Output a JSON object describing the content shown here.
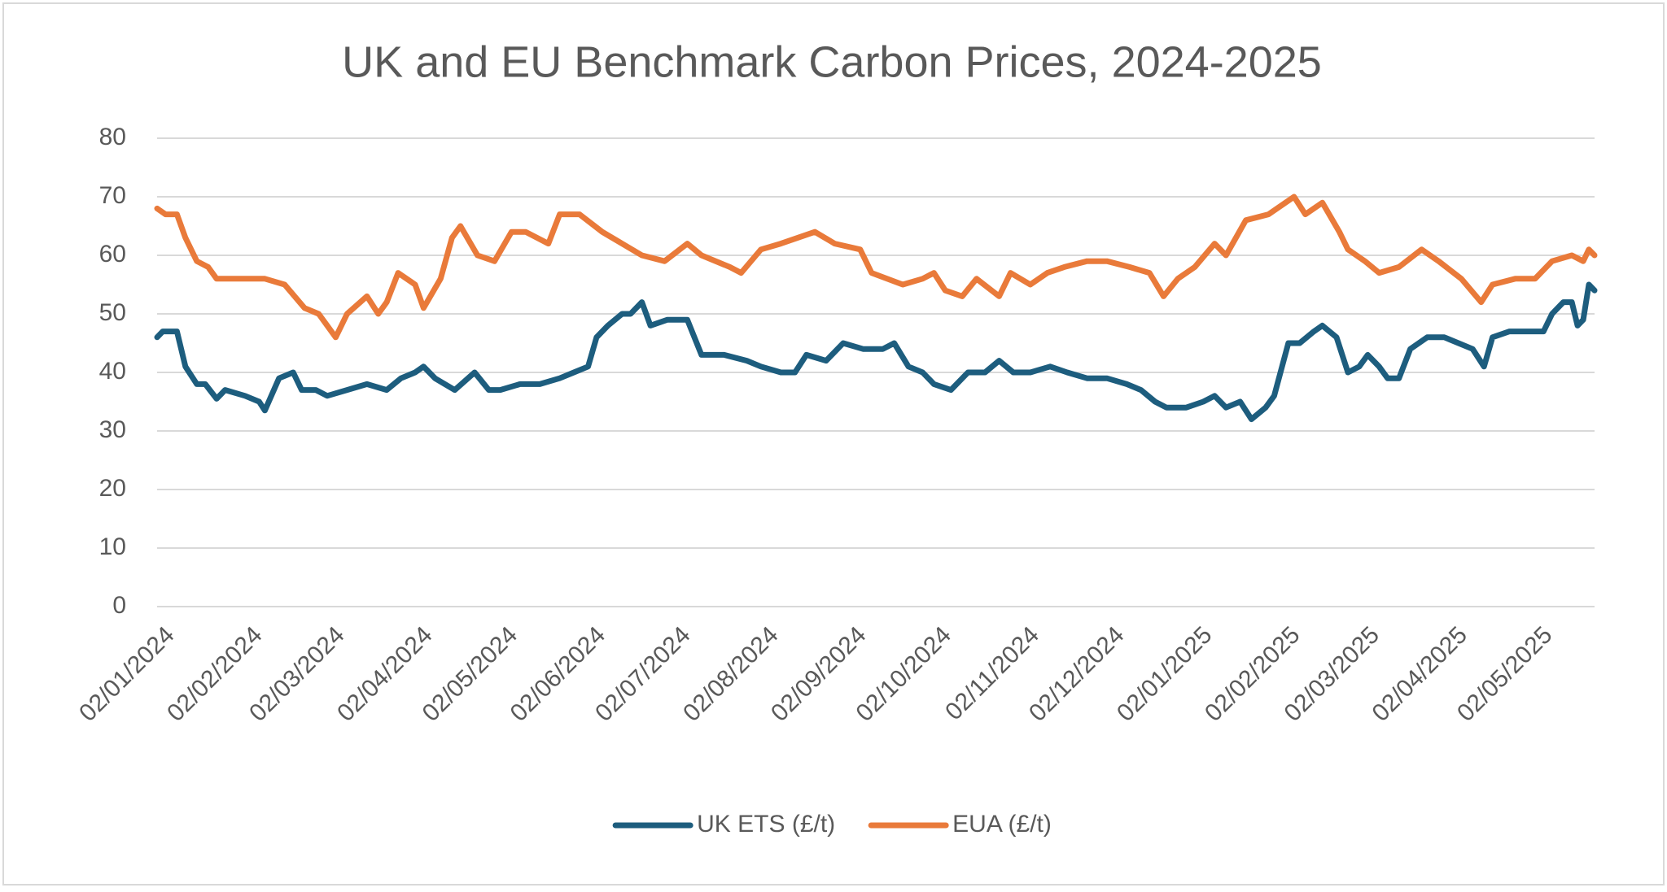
{
  "chart_data": {
    "type": "line",
    "title": "UK and EU Benchmark Carbon Prices, 2024-2025",
    "ylim": [
      0,
      80
    ],
    "yticks": [
      0,
      10,
      20,
      30,
      40,
      50,
      60,
      70,
      80
    ],
    "xlim": [
      "02/01/2024",
      "23/05/2025"
    ],
    "xticks": [
      "02/01/2024",
      "02/02/2024",
      "02/03/2024",
      "02/04/2024",
      "02/05/2024",
      "02/06/2024",
      "02/07/2024",
      "02/08/2024",
      "02/09/2024",
      "02/10/2024",
      "02/11/2024",
      "02/12/2024",
      "02/01/2025",
      "02/02/2025",
      "02/03/2025",
      "02/04/2025",
      "02/05/2025"
    ],
    "grid": true,
    "legend": "bottom",
    "series": [
      {
        "name": "UK ETS (£/t)",
        "color": "#1d5d7e",
        "x": [
          "02/01/2024",
          "04/01/2024",
          "09/01/2024",
          "12/01/2024",
          "16/01/2024",
          "19/01/2024",
          "23/01/2024",
          "26/01/2024",
          "02/02/2024",
          "07/02/2024",
          "09/02/2024",
          "14/02/2024",
          "19/02/2024",
          "22/02/2024",
          "27/02/2024",
          "02/03/2024",
          "09/03/2024",
          "16/03/2024",
          "23/03/2024",
          "28/03/2024",
          "02/04/2024",
          "05/04/2024",
          "09/04/2024",
          "16/04/2024",
          "23/04/2024",
          "28/04/2024",
          "02/05/2024",
          "09/05/2024",
          "16/05/2024",
          "23/05/2024",
          "28/05/2024",
          "02/06/2024",
          "05/06/2024",
          "09/06/2024",
          "14/06/2024",
          "17/06/2024",
          "21/06/2024",
          "24/06/2024",
          "30/06/2024",
          "07/07/2024",
          "12/07/2024",
          "20/07/2024",
          "28/07/2024",
          "02/08/2024",
          "09/08/2024",
          "14/08/2024",
          "18/08/2024",
          "25/08/2024",
          "31/08/2024",
          "07/09/2024",
          "14/09/2024",
          "18/09/2024",
          "23/09/2024",
          "28/09/2024",
          "02/10/2024",
          "08/10/2024",
          "14/10/2024",
          "20/10/2024",
          "25/10/2024",
          "30/10/2024",
          "05/11/2024",
          "12/11/2024",
          "18/11/2024",
          "25/11/2024",
          "02/12/2024",
          "09/12/2024",
          "14/12/2024",
          "19/12/2024",
          "23/12/2024",
          "30/12/2024",
          "05/01/2025",
          "09/01/2025",
          "13/01/2025",
          "18/01/2025",
          "22/01/2025",
          "27/01/2025",
          "30/01/2025",
          "04/02/2025",
          "08/02/2025",
          "13/02/2025",
          "16/02/2025",
          "21/02/2025",
          "25/02/2025",
          "01/03/2025",
          "04/03/2025",
          "08/03/2025",
          "11/03/2025",
          "15/03/2025",
          "19/03/2025",
          "25/03/2025",
          "31/03/2025",
          "05/04/2025",
          "10/04/2025",
          "14/04/2025",
          "17/04/2025",
          "23/04/2025",
          "29/04/2025",
          "05/05/2025",
          "08/05/2025",
          "12/05/2025",
          "15/05/2025",
          "17/05/2025",
          "19/05/2025",
          "21/05/2025",
          "23/05/2025"
        ],
        "values": [
          46,
          47,
          47,
          41,
          38,
          38,
          35.5,
          37,
          36,
          35,
          33.5,
          39,
          40,
          37,
          37,
          36,
          37,
          38,
          37,
          39,
          40,
          41,
          39,
          37,
          40,
          37,
          37,
          38,
          38,
          39,
          40,
          41,
          46,
          48,
          50,
          50,
          52,
          48,
          49,
          49,
          43,
          43,
          42,
          41,
          40,
          40,
          43,
          42,
          45,
          44,
          44,
          45,
          41,
          40,
          38,
          37,
          40,
          40,
          42,
          40,
          40,
          41,
          40,
          39,
          39,
          38,
          37,
          35,
          34,
          34,
          35,
          36,
          34,
          35,
          32,
          34,
          36,
          45,
          45,
          47,
          48,
          46,
          40,
          41,
          43,
          41,
          39,
          39,
          44,
          46,
          46,
          45,
          44,
          41,
          46,
          47,
          47,
          47,
          50,
          52,
          52,
          48,
          49,
          55,
          54
        ]
      },
      {
        "name": "EUA (£/t)",
        "color": "#e97a3a",
        "x": [
          "02/01/2024",
          "05/01/2024",
          "09/01/2024",
          "12/01/2024",
          "16/01/2024",
          "20/01/2024",
          "23/01/2024",
          "28/01/2024",
          "02/02/2024",
          "09/02/2024",
          "16/02/2024",
          "23/02/2024",
          "28/02/2024",
          "02/03/2024",
          "05/03/2024",
          "09/03/2024",
          "16/03/2024",
          "20/03/2024",
          "23/03/2024",
          "27/03/2024",
          "02/04/2024",
          "05/04/2024",
          "11/04/2024",
          "15/04/2024",
          "18/04/2024",
          "24/04/2024",
          "30/04/2024",
          "06/05/2024",
          "11/05/2024",
          "19/05/2024",
          "23/05/2024",
          "30/05/2024",
          "07/06/2024",
          "14/06/2024",
          "21/06/2024",
          "29/06/2024",
          "07/07/2024",
          "12/07/2024",
          "22/07/2024",
          "26/07/2024",
          "02/08/2024",
          "09/08/2024",
          "21/08/2024",
          "28/08/2024",
          "06/09/2024",
          "10/09/2024",
          "21/09/2024",
          "28/09/2024",
          "02/10/2024",
          "06/10/2024",
          "12/10/2024",
          "17/10/2024",
          "25/10/2024",
          "29/10/2024",
          "05/11/2024",
          "11/11/2024",
          "17/11/2024",
          "25/11/2024",
          "02/12/2024",
          "10/12/2024",
          "17/12/2024",
          "22/12/2024",
          "27/12/2024",
          "02/01/2025",
          "09/01/2025",
          "13/01/2025",
          "20/01/2025",
          "28/01/2025",
          "06/02/2025",
          "10/02/2025",
          "16/02/2025",
          "22/02/2025",
          "25/02/2025",
          "03/03/2025",
          "08/03/2025",
          "15/03/2025",
          "23/03/2025",
          "29/03/2025",
          "06/04/2025",
          "13/04/2025",
          "17/04/2025",
          "25/04/2025",
          "02/05/2025",
          "08/05/2025",
          "15/05/2025",
          "19/05/2025",
          "21/05/2025",
          "23/05/2025"
        ],
        "values": [
          68,
          67,
          67,
          63,
          59,
          58,
          56,
          56,
          56,
          56,
          55,
          51,
          50,
          48,
          46,
          50,
          53,
          50,
          52,
          57,
          55,
          51,
          56,
          63,
          65,
          60,
          59,
          64,
          64,
          62,
          67,
          67,
          64,
          62,
          60,
          59,
          62,
          60,
          58,
          57,
          61,
          62,
          64,
          62,
          61,
          57,
          55,
          56,
          57,
          54,
          53,
          56,
          53,
          57,
          55,
          57,
          58,
          59,
          59,
          58,
          57,
          53,
          56,
          58,
          62,
          60,
          66,
          67,
          70,
          67,
          69,
          64,
          61,
          59,
          57,
          58,
          61,
          59,
          56,
          52,
          55,
          56,
          56,
          59,
          60,
          59,
          61,
          60
        ]
      }
    ]
  }
}
